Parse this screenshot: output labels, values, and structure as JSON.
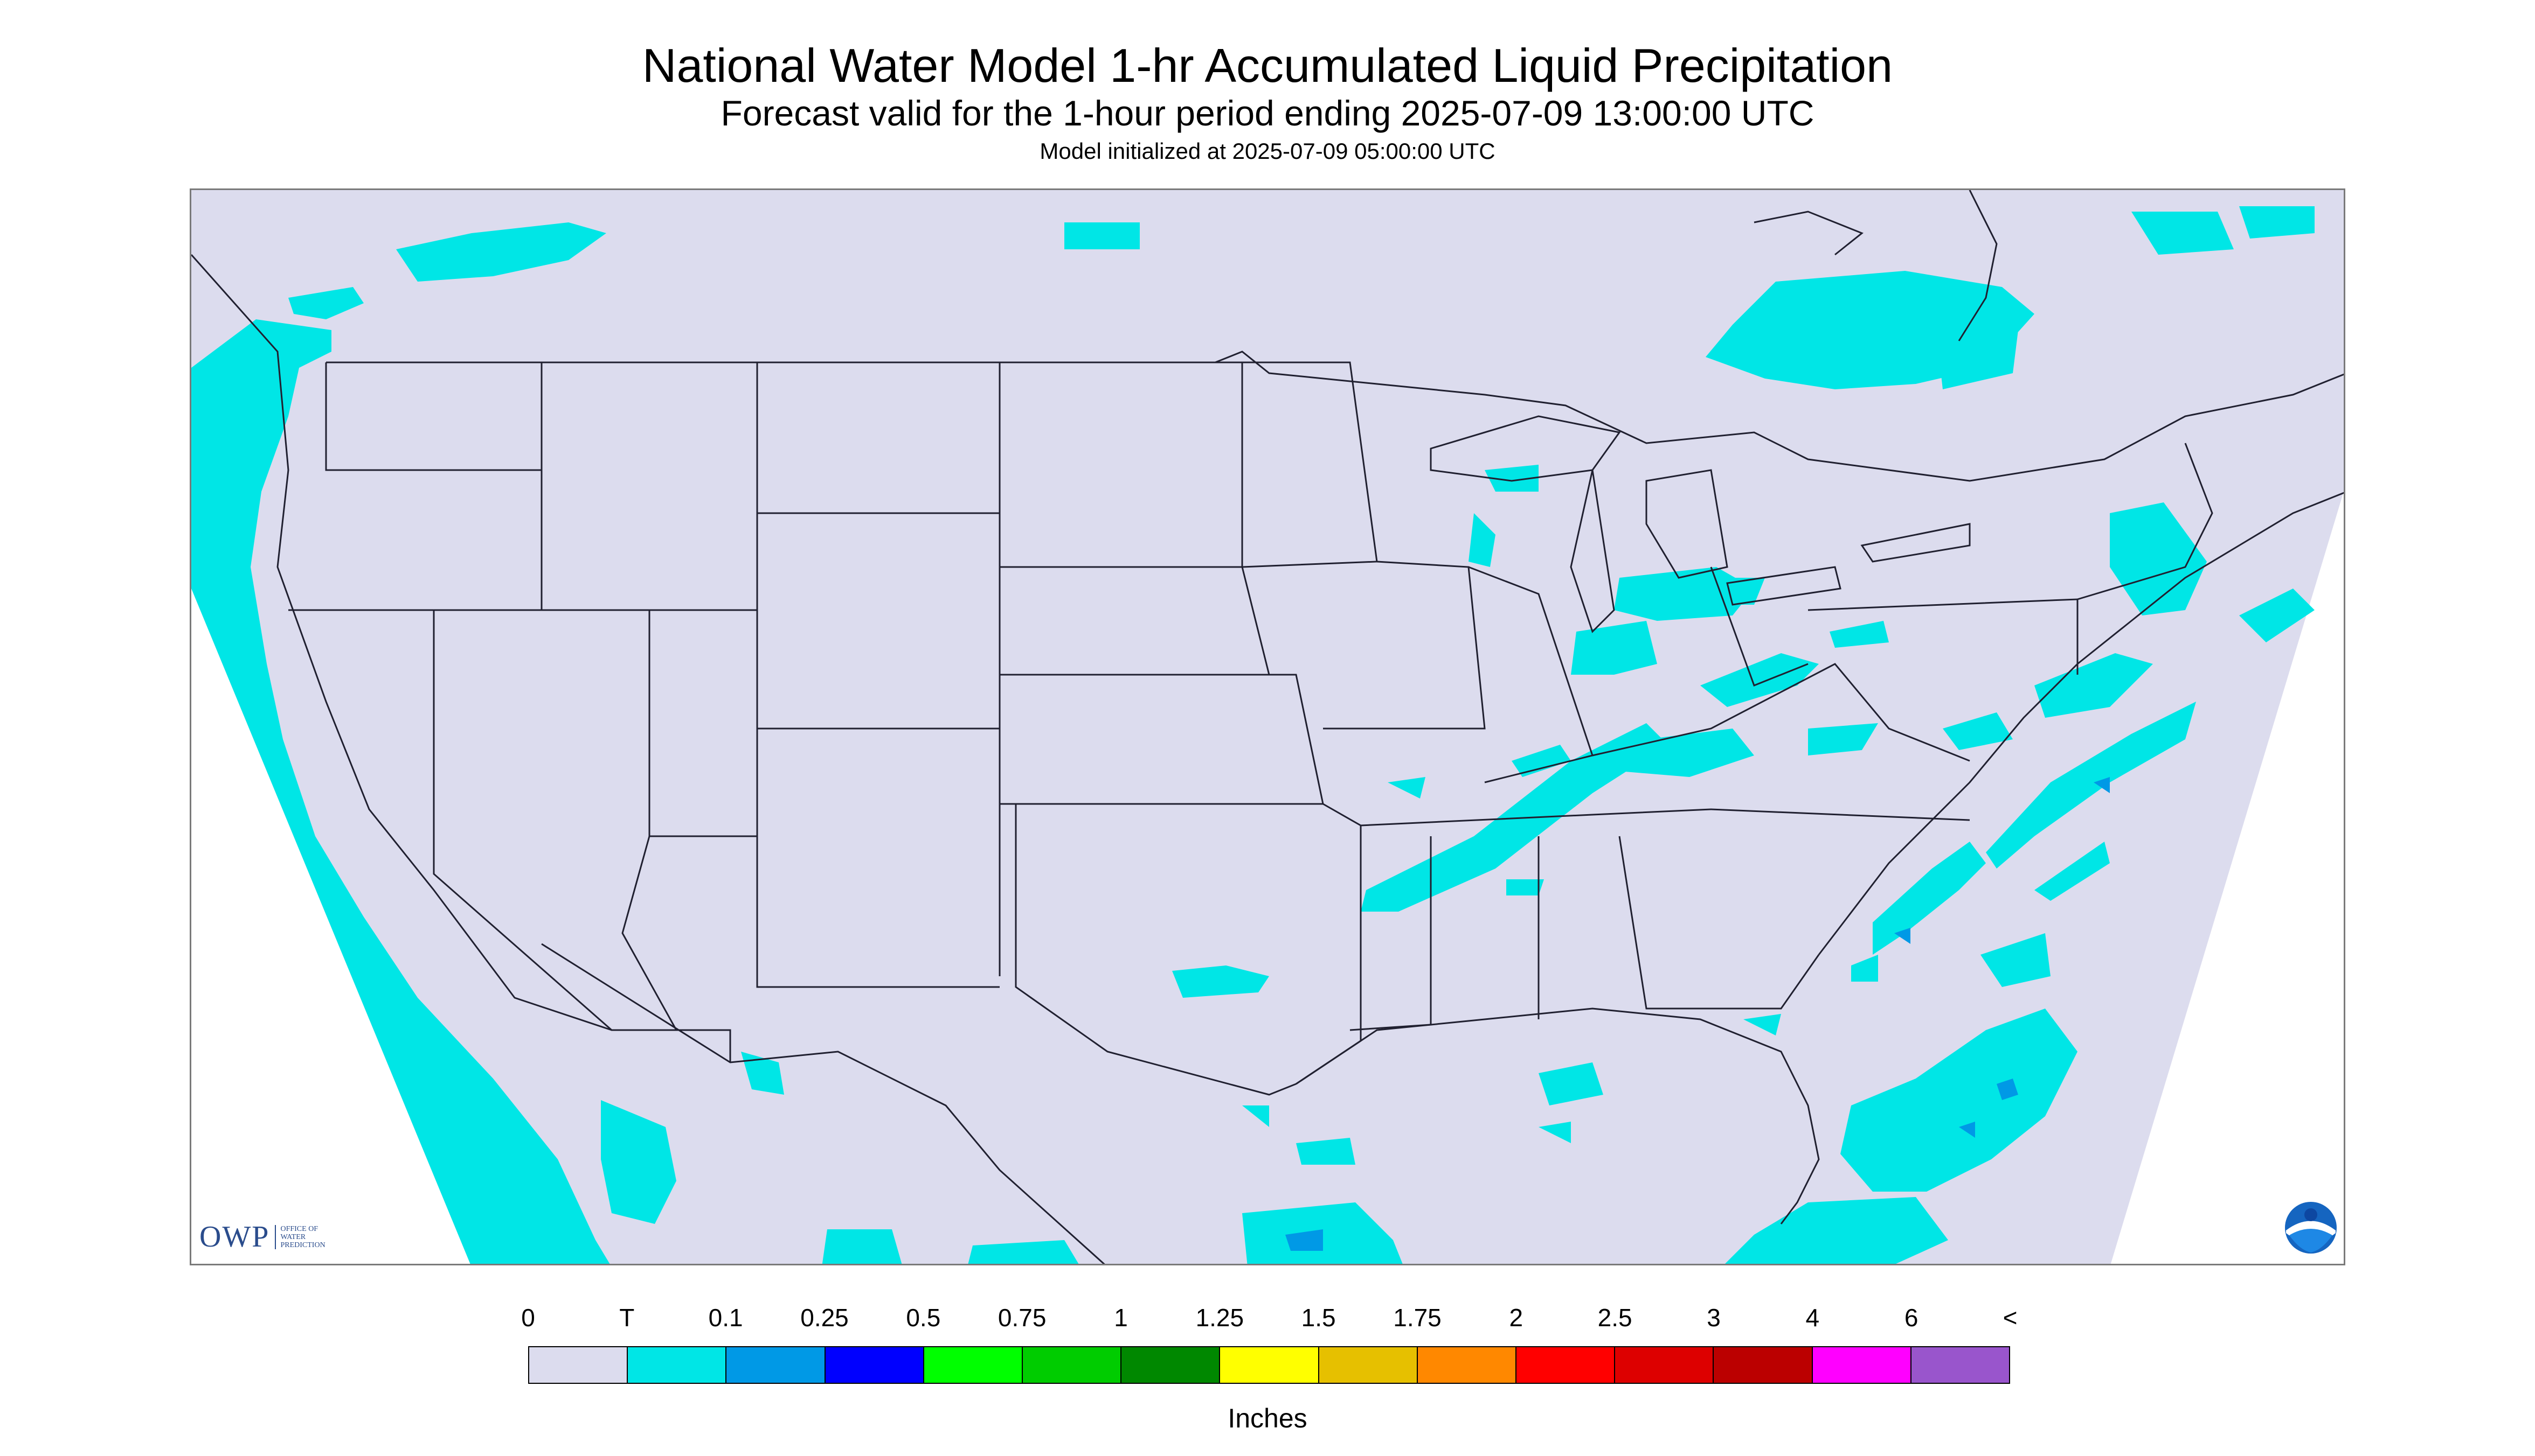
{
  "header": {
    "title": "National Water Model 1-hr Accumulated Liquid Precipitation",
    "subtitle": "Forecast valid for the 1-hour period ending 2025-07-09 13:00:00 UTC",
    "init": "Model initialized at 2025-07-09 05:00:00 UTC"
  },
  "map": {
    "background_color": "#dcdcee",
    "outside_color": "#ffffff",
    "border_color": "#202030",
    "precip_color": "#00e6e6",
    "precip_heavy_color": "#0099e6",
    "region": "CONUS"
  },
  "logos": {
    "owp": "OWP",
    "owp_sub": [
      "OFFICE OF",
      "WATER",
      "PREDICTION"
    ],
    "noaa_icon": "noaa-logo"
  },
  "legend": {
    "labels": [
      "0",
      "T",
      "0.1",
      "0.25",
      "0.5",
      "0.75",
      "1",
      "1.25",
      "1.5",
      "1.75",
      "2",
      "2.5",
      "3",
      "4",
      "6",
      "<"
    ],
    "colors": [
      "#dcdcee",
      "#00e6e6",
      "#0099e6",
      "#0000ff",
      "#00ff00",
      "#00cc00",
      "#008800",
      "#ffff00",
      "#e6c000",
      "#ff8800",
      "#ff0000",
      "#dd0000",
      "#bb0000",
      "#ff00ff",
      "#9955cc"
    ],
    "units": "Inches"
  }
}
